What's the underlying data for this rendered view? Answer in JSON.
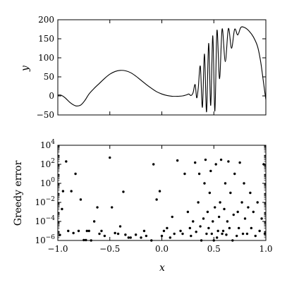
{
  "chart_data": [
    {
      "type": "line",
      "title": "",
      "xlabel": "",
      "ylabel": "y",
      "xlim": [
        -1.0,
        1.0
      ],
      "ylim": [
        -50,
        200
      ],
      "y_ticks": [
        -50,
        0,
        50,
        100,
        150,
        200
      ],
      "y_tick_labels": [
        "−50",
        "0",
        "50",
        "100",
        "150",
        "200"
      ],
      "grid": false,
      "series": [
        {
          "values": [
            [
              -1.0,
              2
            ],
            [
              -0.97,
              2
            ],
            [
              -0.93,
              -5
            ],
            [
              -0.88,
              -18
            ],
            [
              -0.83,
              -26
            ],
            [
              -0.78,
              -24
            ],
            [
              -0.74,
              -12
            ],
            [
              -0.7,
              5
            ],
            [
              -0.65,
              20
            ],
            [
              -0.6,
              33
            ],
            [
              -0.55,
              46
            ],
            [
              -0.5,
              57
            ],
            [
              -0.45,
              64
            ],
            [
              -0.4,
              67
            ],
            [
              -0.35,
              66
            ],
            [
              -0.3,
              61
            ],
            [
              -0.25,
              52
            ],
            [
              -0.2,
              41
            ],
            [
              -0.15,
              30
            ],
            [
              -0.1,
              20
            ],
            [
              -0.05,
              11
            ],
            [
              0.0,
              5
            ],
            [
              0.05,
              1
            ],
            [
              0.1,
              -1
            ],
            [
              0.15,
              -1
            ],
            [
              0.2,
              0
            ],
            [
              0.24,
              3
            ],
            [
              0.26,
              5
            ],
            [
              0.28,
              1
            ],
            [
              0.3,
              8
            ],
            [
              0.32,
              30
            ],
            [
              0.335,
              -5
            ],
            [
              0.35,
              20
            ],
            [
              0.37,
              78
            ],
            [
              0.39,
              -30
            ],
            [
              0.41,
              110
            ],
            [
              0.43,
              -42
            ],
            [
              0.45,
              138
            ],
            [
              0.47,
              -25
            ],
            [
              0.49,
              158
            ],
            [
              0.51,
              -40
            ],
            [
              0.53,
              172
            ],
            [
              0.555,
              45
            ],
            [
              0.58,
              176
            ],
            [
              0.61,
              90
            ],
            [
              0.64,
              177
            ],
            [
              0.67,
              125
            ],
            [
              0.7,
              175
            ],
            [
              0.73,
              160
            ],
            [
              0.76,
              180
            ],
            [
              0.8,
              179
            ],
            [
              0.84,
              170
            ],
            [
              0.88,
              155
            ],
            [
              0.92,
              130
            ],
            [
              0.95,
              90
            ],
            [
              0.98,
              30
            ],
            [
              1.0,
              -10
            ]
          ]
        }
      ]
    },
    {
      "type": "scatter",
      "title": "",
      "xlabel": "x",
      "ylabel": "Greedy error",
      "xlim": [
        -1.0,
        1.0
      ],
      "ylim_log10": [
        -6,
        4
      ],
      "y_scale": "log",
      "x_ticks": [
        -1.0,
        -0.5,
        0.0,
        0.5,
        1.0
      ],
      "x_tick_labels": [
        "−1.0",
        "−0.5",
        "0.0",
        "0.5",
        "1.0"
      ],
      "y_ticks_log10": [
        -6,
        -4,
        -2,
        0,
        2,
        4
      ],
      "grid": false,
      "points": [
        [
          -0.98,
          3.8e-06
        ],
        [
          -0.96,
          0.002
        ],
        [
          -0.95,
          0.15
        ],
        [
          -0.92,
          200.0
        ],
        [
          -0.9,
          1e-05
        ],
        [
          -0.87,
          0.15
        ],
        [
          -0.85,
          6e-06
        ],
        [
          -0.83,
          10.0
        ],
        [
          -0.8,
          1e-05
        ],
        [
          -0.78,
          0.02
        ],
        [
          -0.75,
          1.1e-06
        ],
        [
          -0.73,
          1.1e-06
        ],
        [
          -0.72,
          1e-05
        ],
        [
          -0.7,
          1e-05
        ],
        [
          -0.68,
          1e-06
        ],
        [
          -0.65,
          0.0001
        ],
        [
          -0.62,
          0.003
        ],
        [
          -0.6,
          5e-06
        ],
        [
          -0.58,
          1e-05
        ],
        [
          -0.55,
          3e-06
        ],
        [
          -0.5,
          500.0
        ],
        [
          -0.48,
          0.003
        ],
        [
          -0.45,
          6e-06
        ],
        [
          -0.42,
          5e-06
        ],
        [
          -0.4,
          3e-05
        ],
        [
          -0.37,
          0.13
        ],
        [
          -0.35,
          4e-06
        ],
        [
          -0.32,
          2e-06
        ],
        [
          -0.3,
          2e-06
        ],
        [
          -0.25,
          4e-06
        ],
        [
          -0.2,
          2e-06
        ],
        [
          -0.17,
          1e-05
        ],
        [
          -0.15,
          3e-06
        ],
        [
          -0.1,
          1e-06
        ],
        [
          -0.08,
          100.0
        ],
        [
          -0.05,
          0.02
        ],
        [
          -0.02,
          0.15
        ],
        [
          0.0,
          3e-06
        ],
        [
          0.02,
          1e-05
        ],
        [
          0.05,
          2e-05
        ],
        [
          0.08,
          2e-06
        ],
        [
          0.1,
          0.0003
        ],
        [
          0.12,
          5e-06
        ],
        [
          0.15,
          250.0
        ],
        [
          0.18,
          1e-05
        ],
        [
          0.2,
          5e-06
        ],
        [
          0.22,
          10.0
        ],
        [
          0.25,
          0.001
        ],
        [
          0.27,
          2e-05
        ],
        [
          0.28,
          3e-06
        ],
        [
          0.3,
          0.0001
        ],
        [
          0.32,
          150.0
        ],
        [
          0.33,
          8e-06
        ],
        [
          0.35,
          0.01
        ],
        [
          0.36,
          10.0
        ],
        [
          0.37,
          3e-05
        ],
        [
          0.38,
          1e-06
        ],
        [
          0.4,
          0.0002
        ],
        [
          0.41,
          1.0
        ],
        [
          0.42,
          300.0
        ],
        [
          0.43,
          5e-06
        ],
        [
          0.44,
          0.001
        ],
        [
          0.45,
          2e-05
        ],
        [
          0.46,
          0.1
        ],
        [
          0.47,
          20.0
        ],
        [
          0.48,
          5e-06
        ],
        [
          0.49,
          0.0001
        ],
        [
          0.5,
          1e-06
        ],
        [
          0.51,
          0.003
        ],
        [
          0.52,
          100.0
        ],
        [
          0.53,
          2e-06
        ],
        [
          0.54,
          1e-05
        ],
        [
          0.55,
          0.0003
        ],
        [
          0.56,
          0.01
        ],
        [
          0.57,
          300.0
        ],
        [
          0.58,
          5e-06
        ],
        [
          0.59,
          1e-05
        ],
        [
          0.6,
          0.002
        ],
        [
          0.61,
          1.0
        ],
        [
          0.62,
          4e-06
        ],
        [
          0.63,
          0.0001
        ],
        [
          0.64,
          200.0
        ],
        [
          0.65,
          2e-05
        ],
        [
          0.66,
          0.1
        ],
        [
          0.68,
          1e-06
        ],
        [
          0.69,
          0.0005
        ],
        [
          0.7,
          10.0
        ],
        [
          0.72,
          3e-06
        ],
        [
          0.73,
          0.001
        ],
        [
          0.74,
          2e-05
        ],
        [
          0.75,
          150.0
        ],
        [
          0.77,
          0.01
        ],
        [
          0.78,
          5e-06
        ],
        [
          0.79,
          1.0
        ],
        [
          0.8,
          0.0002
        ],
        [
          0.82,
          5e-06
        ],
        [
          0.83,
          0.003
        ],
        [
          0.85,
          0.1
        ],
        [
          0.86,
          2e-05
        ],
        [
          0.88,
          0.001
        ],
        [
          0.9,
          3e-06
        ],
        [
          0.92,
          0.01
        ],
        [
          0.94,
          1e-05
        ],
        [
          0.96,
          0.0002
        ],
        [
          0.98,
          100.0
        ],
        [
          0.99,
          5e-06
        ]
      ]
    }
  ]
}
